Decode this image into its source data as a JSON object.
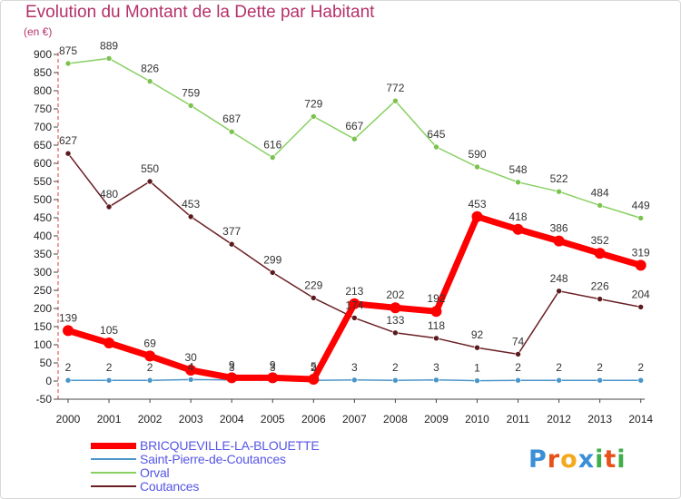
{
  "title": "Evolution du Montant de la Dette par Habitant",
  "unit": "(en €)",
  "logo": {
    "text": "Proxiti",
    "letters": [
      "P",
      "r",
      "o",
      "x",
      "i",
      "t",
      "i"
    ],
    "colors": [
      "#3a8fd6",
      "#e8501a",
      "#f4a91c",
      "#3a8fd6",
      "#3fae49",
      "#e8501a",
      "#3fae49"
    ]
  },
  "chart_data": {
    "type": "line",
    "x": [
      "2000",
      "2001",
      "2002",
      "2003",
      "2004",
      "2005",
      "2006",
      "2007",
      "2008",
      "2009",
      "2010",
      "2011",
      "2012",
      "2013",
      "2014"
    ],
    "ylim": [
      -50,
      900
    ],
    "yticks": [
      -50,
      0,
      50,
      100,
      150,
      200,
      250,
      300,
      350,
      400,
      450,
      500,
      550,
      600,
      650,
      700,
      750,
      800,
      850,
      900
    ],
    "grid": false,
    "legend_position": "bottom-left",
    "series": [
      {
        "name": "BRICQUEVILLE-LA-BLOUETTE",
        "color": "#ff0000",
        "values": [
          139,
          105,
          69,
          30,
          9,
          9,
          5,
          213,
          202,
          192,
          453,
          418,
          386,
          352,
          319
        ],
        "labels": [
          "139",
          "105",
          "69",
          "30",
          "9",
          "9",
          "5",
          "213",
          "202",
          "192",
          "453",
          "418",
          "386",
          "352",
          "319"
        ]
      },
      {
        "name": "Saint-Pierre-de-Coutances",
        "color": "#4a95c9",
        "values": [
          2,
          2,
          2,
          4,
          3,
          3,
          2,
          3,
          2,
          3,
          1,
          2,
          2,
          2,
          2
        ],
        "labels": [
          "2",
          "2",
          "2",
          "4",
          "3",
          "3",
          "2",
          "3",
          "2",
          "3",
          "1",
          "2",
          "2",
          "2",
          "2"
        ]
      },
      {
        "name": "Orval",
        "color": "#88d062",
        "values": [
          875,
          889,
          826,
          759,
          687,
          616,
          729,
          667,
          772,
          645,
          590,
          548,
          522,
          484,
          449
        ],
        "labels": [
          "875",
          "889",
          "826",
          "759",
          "687",
          "616",
          "729",
          "667",
          "772",
          "645",
          "590",
          "548",
          "522",
          "484",
          "449"
        ]
      },
      {
        "name": "Coutances",
        "color": "#6b1f24",
        "values": [
          627,
          480,
          550,
          453,
          377,
          299,
          229,
          174,
          133,
          118,
          92,
          74,
          248,
          226,
          204
        ],
        "labels": [
          "627",
          "480",
          "550",
          "453",
          "377",
          "299",
          "229",
          "174",
          "133",
          "118",
          "92",
          "74",
          "248",
          "226",
          "204"
        ]
      }
    ]
  }
}
